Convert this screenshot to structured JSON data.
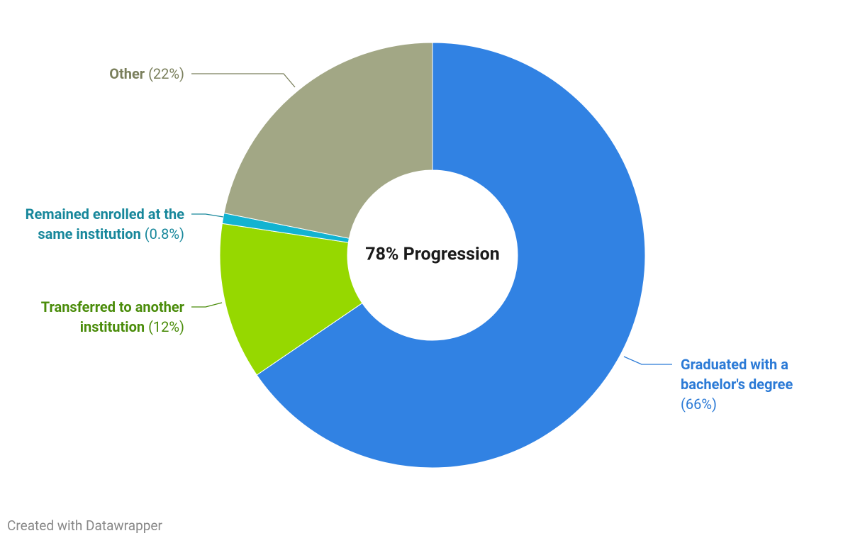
{
  "chart_data": {
    "type": "donut",
    "center_text": "78% Progression",
    "categories": [
      "Graduated with a bachelor's degree",
      "Transferred to another institution",
      "Remained enrolled at the same institution",
      "Other"
    ],
    "values": [
      66,
      12,
      0.8,
      22
    ],
    "value_labels": [
      "(66%)",
      "(12%)",
      "(0.8%)",
      "(22%)"
    ],
    "colors": [
      "#3182e3",
      "#96d800",
      "#12b3d1",
      "#a2a785"
    ],
    "footer": "Created with Datawrapper"
  }
}
